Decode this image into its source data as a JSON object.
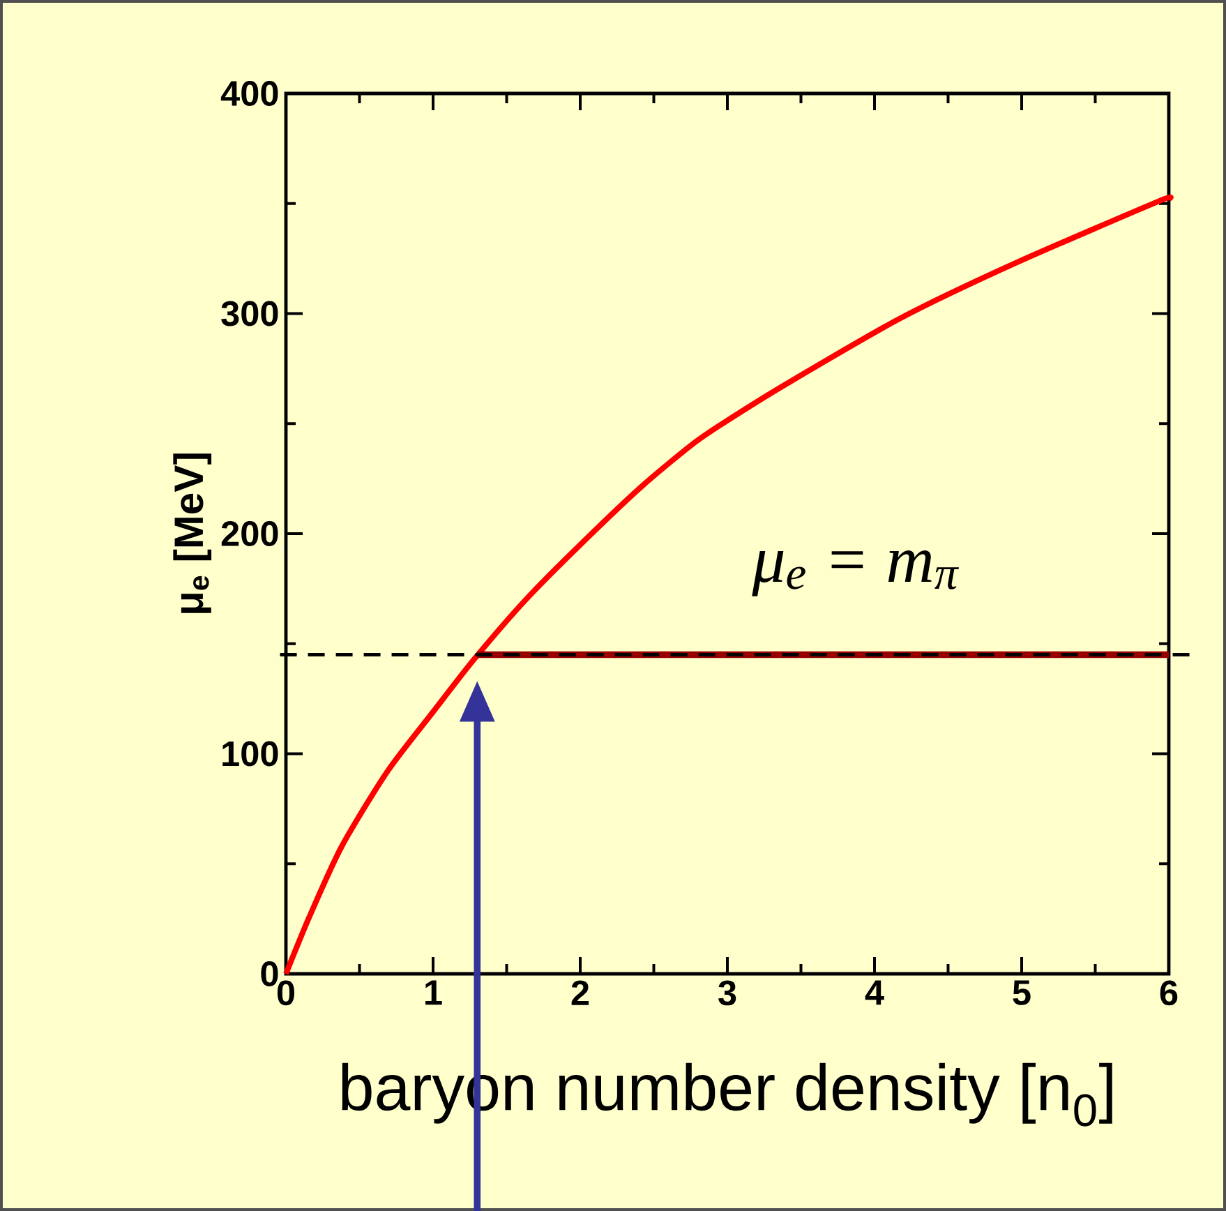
{
  "chart_data": {
    "type": "line",
    "xlabel": "baryon number density [n$_{0}$]",
    "ylabel": "μ$_{e}$ [MeV]",
    "xlim": [
      0,
      6
    ],
    "ylim": [
      0,
      400
    ],
    "xticks": [
      0,
      1,
      2,
      3,
      4,
      5,
      6
    ],
    "yticks": [
      0,
      100,
      200,
      300,
      400
    ],
    "marker": "none",
    "line_style": "solid",
    "series": [
      {
        "color": "#ff0000",
        "x": [
          0,
          0.16,
          0.38,
          0.69,
          1.0,
          1.28,
          1.63,
          1.97,
          2.41,
          2.77,
          2.99,
          3.4,
          4.18,
          4.96,
          5.93,
          6
        ],
        "values": [
          0,
          26,
          58,
          92,
          119,
          143,
          170,
          193,
          221,
          241,
          251,
          268,
          298,
          323,
          351,
          352
        ]
      },
      {
        "color": "#990000",
        "x": [
          1.3,
          6
        ],
        "values": [
          145,
          145
        ]
      }
    ],
    "ref_lines": [
      {
        "axis": "y",
        "value": 145,
        "color": "#000000",
        "line_style": "dashed"
      }
    ],
    "annotations": [
      "μ$_{e}$ = m$_{π}$"
    ]
  }
}
